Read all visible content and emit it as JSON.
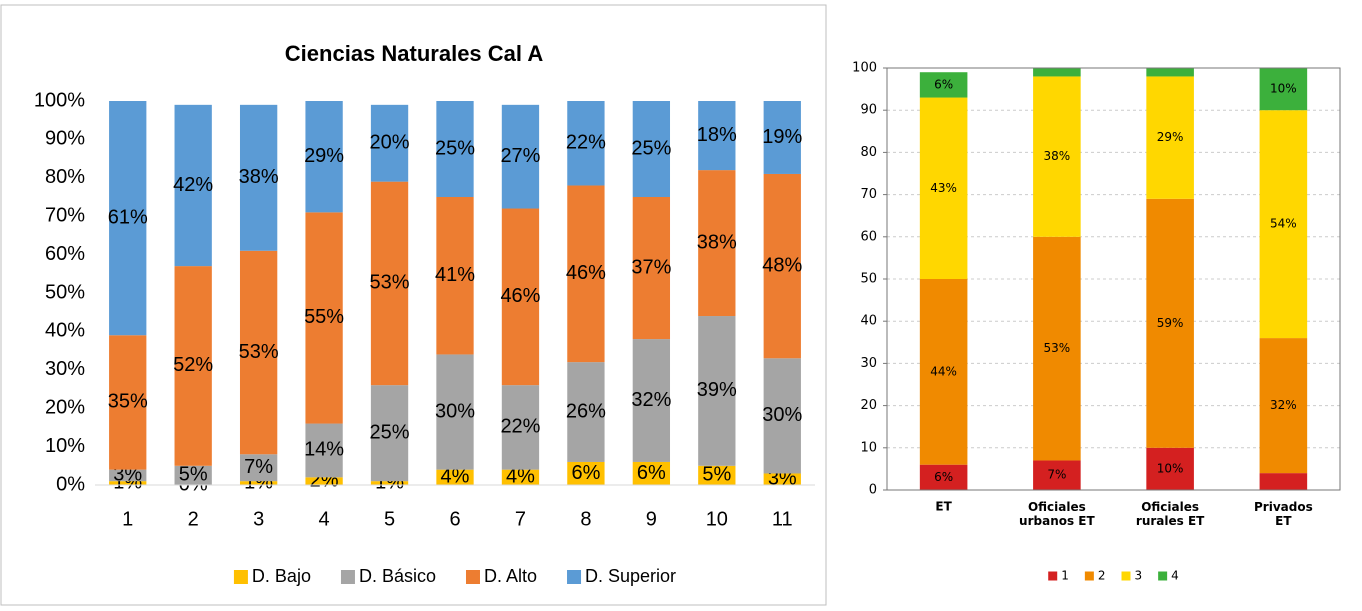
{
  "chart_data": [
    {
      "type": "bar",
      "stacked": true,
      "title": "Ciencias Naturales Cal A",
      "categories": [
        "1",
        "2",
        "3",
        "4",
        "5",
        "6",
        "7",
        "8",
        "9",
        "10",
        "11"
      ],
      "series": [
        {
          "name": "D. Bajo",
          "color": "#FFC000",
          "values": [
            1,
            0,
            1,
            2,
            1,
            4,
            4,
            6,
            6,
            5,
            3
          ],
          "value_labels": [
            "1%",
            "0%",
            "1%",
            "2%",
            "1%",
            "4%",
            "4%",
            "6%",
            "6%",
            "5%",
            "3%"
          ]
        },
        {
          "name": "D. Básico",
          "color": "#A5A5A5",
          "values": [
            3,
            5,
            7,
            14,
            25,
            30,
            22,
            26,
            32,
            39,
            30
          ],
          "value_labels": [
            "3%",
            "5%",
            "7%",
            "14%",
            "25%",
            "30%",
            "22%",
            "26%",
            "32%",
            "39%",
            "30%"
          ]
        },
        {
          "name": "D. Alto",
          "color": "#ED7D31",
          "values": [
            35,
            52,
            53,
            55,
            53,
            41,
            46,
            46,
            37,
            38,
            48
          ],
          "value_labels": [
            "35%",
            "52%",
            "53%",
            "55%",
            "53%",
            "41%",
            "46%",
            "46%",
            "37%",
            "38%",
            "48%"
          ]
        },
        {
          "name": "D. Superior",
          "color": "#5B9BD5",
          "values": [
            61,
            42,
            38,
            29,
            20,
            25,
            27,
            22,
            25,
            18,
            19
          ],
          "value_labels": [
            "61%",
            "42%",
            "38%",
            "29%",
            "20%",
            "25%",
            "27%",
            "22%",
            "25%",
            "18%",
            "19%"
          ]
        }
      ],
      "ylim": [
        0,
        100
      ],
      "yticks": [
        {
          "value": 0,
          "label": "0%"
        },
        {
          "value": 10,
          "label": "10%"
        },
        {
          "value": 20,
          "label": "20%"
        },
        {
          "value": 30,
          "label": "30%"
        },
        {
          "value": 40,
          "label": "40%"
        },
        {
          "value": 50,
          "label": "50%"
        },
        {
          "value": 60,
          "label": "60%"
        },
        {
          "value": 70,
          "label": "70%"
        },
        {
          "value": 80,
          "label": "80%"
        },
        {
          "value": 90,
          "label": "90%"
        },
        {
          "value": 100,
          "label": "100%"
        }
      ],
      "grid": false,
      "legend": "bottom"
    },
    {
      "type": "bar",
      "stacked": true,
      "categories": [
        "ET",
        "Oficiales urbanos ET",
        "Oficiales rurales ET",
        "Privados ET"
      ],
      "series": [
        {
          "name": "1",
          "color": "#D42020",
          "values": [
            6,
            7,
            10,
            4
          ],
          "value_labels": [
            "6%",
            "7%",
            "10%",
            null
          ]
        },
        {
          "name": "2",
          "color": "#F08A00",
          "values": [
            44,
            53,
            59,
            32
          ],
          "value_labels": [
            "44%",
            "53%",
            "59%",
            "32%"
          ]
        },
        {
          "name": "3",
          "color": "#FFD700",
          "values": [
            43,
            38,
            29,
            54
          ],
          "value_labels": [
            "43%",
            "38%",
            "29%",
            "54%"
          ]
        },
        {
          "name": "4",
          "color": "#3CB03C",
          "values": [
            6,
            2,
            2,
            10
          ],
          "value_labels": [
            "6%",
            null,
            null,
            "10%"
          ]
        }
      ],
      "ylim": [
        0,
        100
      ],
      "yticks": [
        0,
        10,
        20,
        30,
        40,
        50,
        60,
        70,
        80,
        90,
        100
      ],
      "grid": true,
      "legend": "bottom"
    }
  ]
}
